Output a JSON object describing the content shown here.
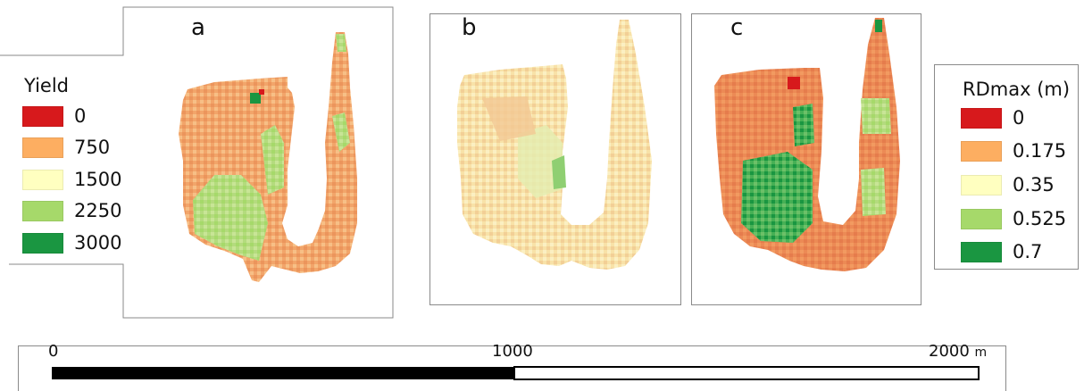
{
  "panels": [
    {
      "id": "a",
      "label": "a"
    },
    {
      "id": "b",
      "label": "b"
    },
    {
      "id": "c",
      "label": "c"
    }
  ],
  "legend_yield": {
    "title": "Yield",
    "items": [
      {
        "label": "0",
        "color": "#d7191c"
      },
      {
        "label": "750",
        "color": "#fdae61"
      },
      {
        "label": "1500",
        "color": "#ffffc0"
      },
      {
        "label": "2250",
        "color": "#a6d96a"
      },
      {
        "label": "3000",
        "color": "#1a9641"
      }
    ]
  },
  "legend_rdmax": {
    "title": "RDmax (m)",
    "items": [
      {
        "label": "0",
        "color": "#d7191c"
      },
      {
        "label": "0.175",
        "color": "#fdae61"
      },
      {
        "label": "0.35",
        "color": "#ffffc0"
      },
      {
        "label": "0.525",
        "color": "#a6d96a"
      },
      {
        "label": "0.7",
        "color": "#1a9641"
      }
    ]
  },
  "scalebar": {
    "labels": [
      "0",
      "1000",
      "2000"
    ],
    "unit": "m"
  }
}
